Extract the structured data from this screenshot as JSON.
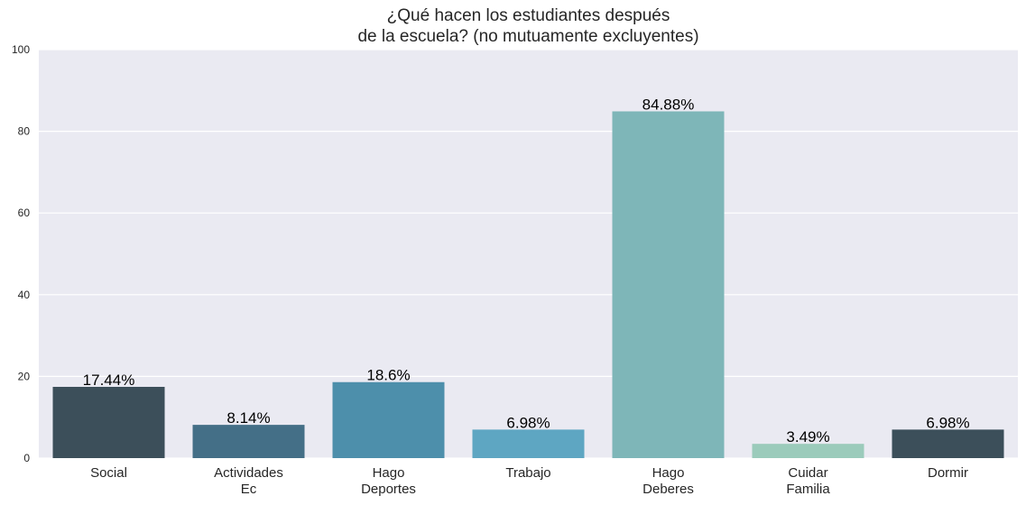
{
  "chart_data": {
    "type": "bar",
    "title": "¿Qué hacen los estudiantes después\nde la escuela? (no mutuamente excluyentes)",
    "xlabel": "",
    "ylabel": "",
    "ylim": [
      0,
      100
    ],
    "yticks": [
      0,
      20,
      40,
      60,
      80,
      100
    ],
    "grid": true,
    "categories": [
      "Social",
      "Actividades\nEc",
      "Hago\nDeportes",
      "Trabajo",
      "Hago\nDeberes",
      "Cuidar\nFamilia",
      "Dormir"
    ],
    "values": [
      17.44,
      8.14,
      18.6,
      6.98,
      84.88,
      3.49,
      6.98
    ],
    "data_labels": [
      "17.44%",
      "8.14%",
      "18.6%",
      "6.98%",
      "84.88%",
      "3.49%",
      "6.98%"
    ],
    "colors": [
      "#3c4f5a",
      "#446f87",
      "#4d8fab",
      "#5ea6c2",
      "#7eb6b8",
      "#9bcbbb",
      "#3c4f5a"
    ],
    "background": "#eaeaf2",
    "grid_color": "#ffffff"
  }
}
